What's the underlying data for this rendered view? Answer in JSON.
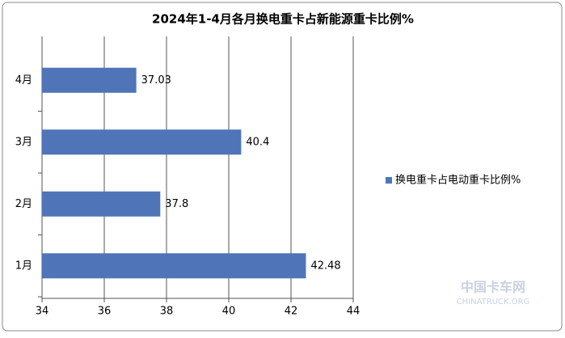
{
  "chart_data": {
    "type": "bar",
    "orientation": "horizontal",
    "title": "2024年1-4月各月换电重卡占新能源重卡比例%",
    "categories": [
      "1月",
      "2月",
      "3月",
      "4月"
    ],
    "series": [
      {
        "name": "换电重卡占电动重卡比例%",
        "color": "#4f75b8",
        "values": [
          42.48,
          37.8,
          40.4,
          37.03
        ]
      }
    ],
    "xlim": [
      34,
      44
    ],
    "xticks": [
      34,
      36,
      38,
      40,
      42,
      44
    ],
    "grid": true,
    "legend": "right",
    "watermark": [
      "中国卡车网",
      "CHINATRUCK.ORG"
    ]
  }
}
